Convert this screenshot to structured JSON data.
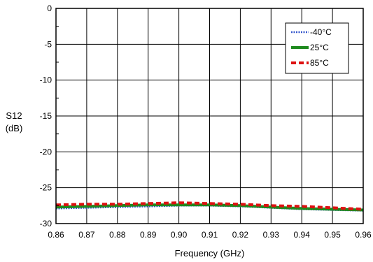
{
  "chart_data": {
    "type": "line",
    "title": "",
    "xlabel": "Frequency (GHz)",
    "ylabel_lines": [
      "S12",
      "(dB)"
    ],
    "xlim": [
      0.86,
      0.96
    ],
    "ylim": [
      -30,
      0
    ],
    "x_ticks": [
      0.86,
      0.87,
      0.88,
      0.89,
      0.9,
      0.91,
      0.92,
      0.93,
      0.94,
      0.95,
      0.96
    ],
    "x_tick_labels": [
      "0.86",
      "0.87",
      "0.88",
      "0.89",
      "0.90",
      "0.91",
      "0.92",
      "0.93",
      "0.94",
      "0.95",
      "0.96"
    ],
    "y_ticks": [
      0,
      -5,
      -10,
      -15,
      -20,
      -25,
      -30
    ],
    "y_tick_labels": [
      "0",
      "-5",
      "-10",
      "-15",
      "-20",
      "-25",
      "-30"
    ],
    "grid": true,
    "legend_position": "top-right",
    "x": [
      0.86,
      0.87,
      0.88,
      0.89,
      0.9,
      0.91,
      0.92,
      0.93,
      0.94,
      0.95,
      0.96
    ],
    "series": [
      {
        "name": "-40°C",
        "color": "#3355cc",
        "style": "dotted",
        "values": [
          -27.9,
          -27.8,
          -27.7,
          -27.6,
          -27.5,
          -27.5,
          -27.6,
          -27.8,
          -28.0,
          -28.1,
          -28.2
        ]
      },
      {
        "name": "25°C",
        "color": "#1e8a1e",
        "style": "solid",
        "values": [
          -27.7,
          -27.6,
          -27.5,
          -27.4,
          -27.4,
          -27.4,
          -27.5,
          -27.7,
          -27.9,
          -28.0,
          -28.1
        ]
      },
      {
        "name": "85°C",
        "color": "#dd1111",
        "style": "dashed",
        "values": [
          -27.4,
          -27.3,
          -27.3,
          -27.2,
          -27.1,
          -27.2,
          -27.3,
          -27.5,
          -27.6,
          -27.8,
          -28.0
        ]
      }
    ]
  }
}
